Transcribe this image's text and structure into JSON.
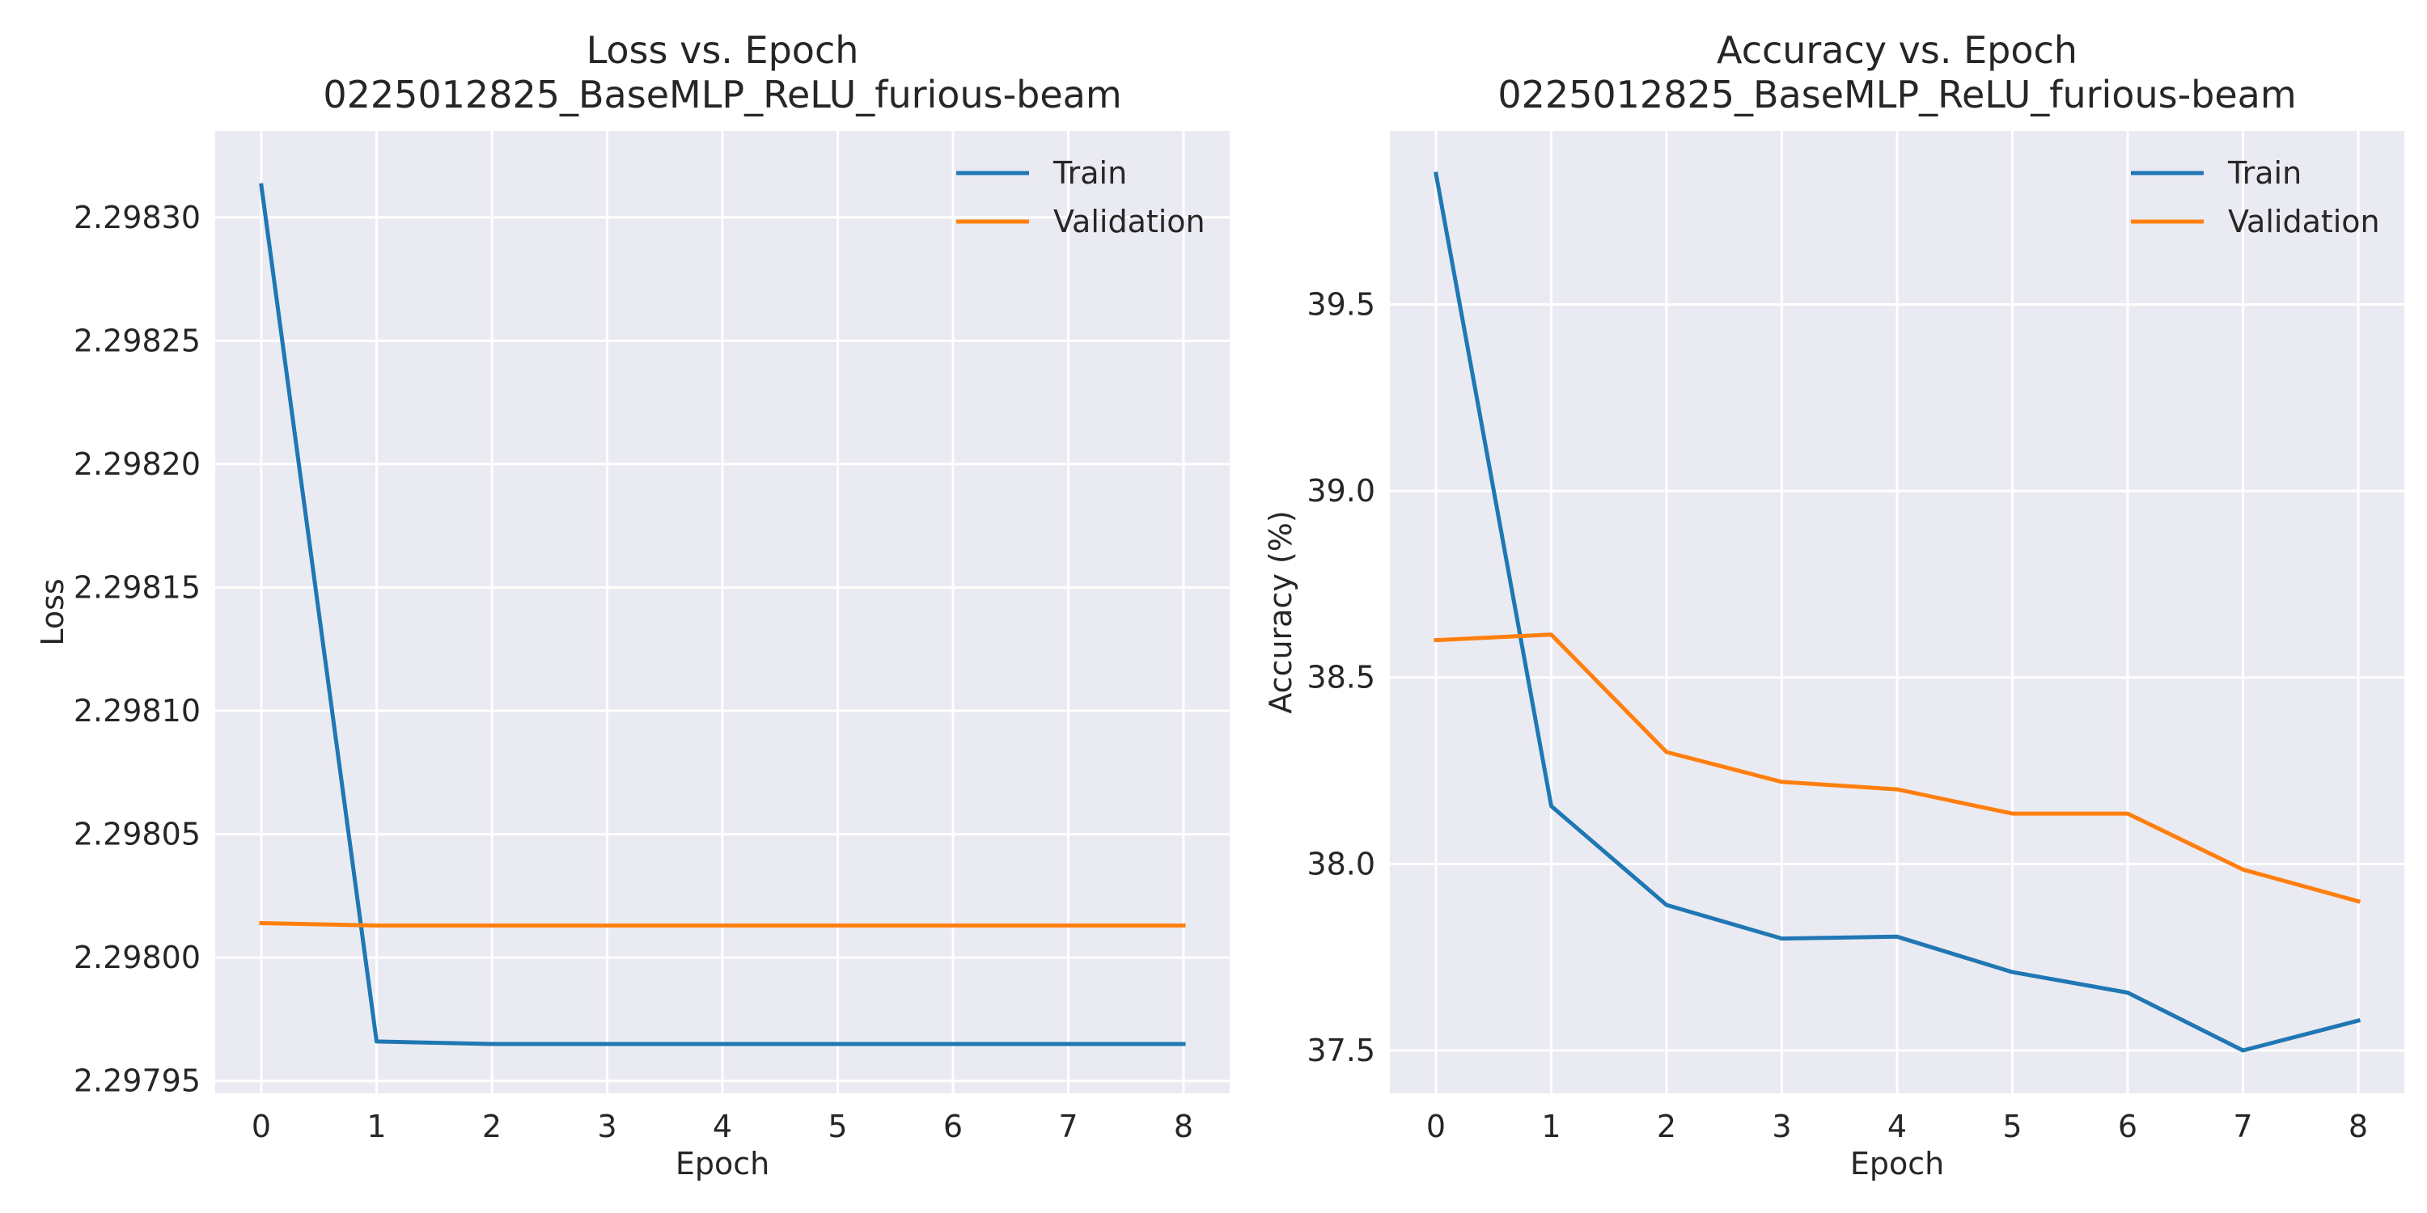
{
  "chart_data": [
    {
      "type": "line",
      "title": "Loss vs. Epoch",
      "subtitle": "0225012825_BaseMLP_ReLU_furious-beam",
      "xlabel": "Epoch",
      "ylabel": "Loss",
      "x": [
        0,
        1,
        2,
        3,
        4,
        5,
        6,
        7,
        8
      ],
      "xlim": [
        -0.4,
        8.4
      ],
      "ylim": [
        2.297945,
        2.298335
      ],
      "xticks": [
        "0",
        "1",
        "2",
        "3",
        "4",
        "5",
        "6",
        "7",
        "8"
      ],
      "yticks": [
        "2.29795",
        "2.29800",
        "2.29805",
        "2.29810",
        "2.29815",
        "2.29820",
        "2.29825",
        "2.29830"
      ],
      "grid": true,
      "legend": "top-right",
      "series": [
        {
          "name": "Train",
          "color": "#1f77b4",
          "values": [
            2.298313,
            2.297966,
            2.297965,
            2.297965,
            2.297965,
            2.297965,
            2.297965,
            2.297965,
            2.297965
          ]
        },
        {
          "name": "Validation",
          "color": "#ff7f0e",
          "values": [
            2.298014,
            2.298013,
            2.298013,
            2.298013,
            2.298013,
            2.298013,
            2.298013,
            2.298013,
            2.298013
          ]
        }
      ]
    },
    {
      "type": "line",
      "title": "Accuracy vs. Epoch",
      "subtitle": "0225012825_BaseMLP_ReLU_furious-beam",
      "xlabel": "Epoch",
      "ylabel": "Accuracy (%)",
      "x": [
        0,
        1,
        2,
        3,
        4,
        5,
        6,
        7,
        8
      ],
      "xlim": [
        -0.4,
        8.4
      ],
      "ylim": [
        37.385,
        39.965
      ],
      "xticks": [
        "0",
        "1",
        "2",
        "3",
        "4",
        "5",
        "6",
        "7",
        "8"
      ],
      "yticks": [
        "37.5",
        "38.0",
        "38.5",
        "39.0",
        "39.5"
      ],
      "grid": true,
      "legend": "top-right",
      "series": [
        {
          "name": "Train",
          "color": "#1f77b4",
          "values": [
            39.85,
            38.155,
            37.89,
            37.8,
            37.805,
            37.71,
            37.655,
            37.5,
            37.58
          ]
        },
        {
          "name": "Validation",
          "color": "#ff7f0e",
          "values": [
            38.6,
            38.615,
            38.3,
            38.22,
            38.2,
            38.135,
            38.135,
            37.985,
            37.9
          ]
        }
      ]
    }
  ]
}
